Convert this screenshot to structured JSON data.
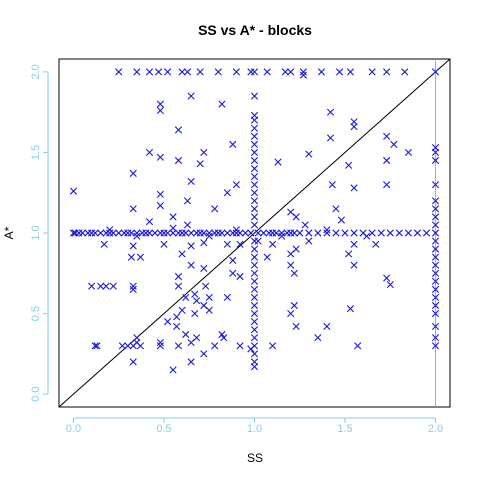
{
  "chart_data": {
    "type": "scatter",
    "title": "SS vs A* - blocks",
    "xlabel": "SS",
    "ylabel": "A*",
    "xlim": [
      -0.08,
      2.08
    ],
    "ylim": [
      -0.08,
      2.08
    ],
    "x_ticks": [
      "0.0",
      "0.5",
      "1.0",
      "1.5",
      "2.0"
    ],
    "y_ticks": [
      "0.0",
      "0.5",
      "1.0",
      "1.5",
      "2.0"
    ],
    "tick_values": [
      0,
      0.5,
      1,
      1.5,
      2
    ],
    "marker": "x",
    "colors": {
      "points": "#1a1adb",
      "ticks": "#87ceeb",
      "axis": "#87ceeb",
      "reference_line": "#000000",
      "vertical_ref": "#aaaaaa"
    },
    "reference_line": {
      "intercept": 0,
      "slope": 1
    },
    "vertical_reference_x": 2,
    "points": [
      [
        0.0,
        1.0
      ],
      [
        0.0,
        1.26
      ],
      [
        0.01,
        1.0
      ],
      [
        0.03,
        1.0
      ],
      [
        0.05,
        1.0
      ],
      [
        0.08,
        1.0
      ],
      [
        0.1,
        1.0
      ],
      [
        0.12,
        1.0
      ],
      [
        0.15,
        1.0
      ],
      [
        0.18,
        1.0
      ],
      [
        0.2,
        1.0
      ],
      [
        0.22,
        1.0
      ],
      [
        0.25,
        1.0
      ],
      [
        0.28,
        1.0
      ],
      [
        0.3,
        1.0
      ],
      [
        0.32,
        1.0
      ],
      [
        0.35,
        1.0
      ],
      [
        0.38,
        1.0
      ],
      [
        0.4,
        1.0
      ],
      [
        0.42,
        1.0
      ],
      [
        0.45,
        1.0
      ],
      [
        0.48,
        1.0
      ],
      [
        0.5,
        1.0
      ],
      [
        0.52,
        1.0
      ],
      [
        0.55,
        1.0
      ],
      [
        0.58,
        1.0
      ],
      [
        0.6,
        1.0
      ],
      [
        0.62,
        1.0
      ],
      [
        0.65,
        1.0
      ],
      [
        0.68,
        1.0
      ],
      [
        0.7,
        1.0
      ],
      [
        0.72,
        1.0
      ],
      [
        0.75,
        1.0
      ],
      [
        0.78,
        1.0
      ],
      [
        0.8,
        1.0
      ],
      [
        0.82,
        1.0
      ],
      [
        0.85,
        1.0
      ],
      [
        0.88,
        1.0
      ],
      [
        0.9,
        1.0
      ],
      [
        0.92,
        1.0
      ],
      [
        0.95,
        1.0
      ],
      [
        0.98,
        1.0
      ],
      [
        1.02,
        1.0
      ],
      [
        1.05,
        1.0
      ],
      [
        1.08,
        1.0
      ],
      [
        1.1,
        1.0
      ],
      [
        1.12,
        1.0
      ],
      [
        1.15,
        1.0
      ],
      [
        1.18,
        1.0
      ],
      [
        1.2,
        1.0
      ],
      [
        1.22,
        1.0
      ],
      [
        1.25,
        1.0
      ],
      [
        1.3,
        1.0
      ],
      [
        1.35,
        1.0
      ],
      [
        1.4,
        1.0
      ],
      [
        1.45,
        1.0
      ],
      [
        1.5,
        1.0
      ],
      [
        1.55,
        1.0
      ],
      [
        1.6,
        1.0
      ],
      [
        1.65,
        1.0
      ],
      [
        1.7,
        1.0
      ],
      [
        1.75,
        1.0
      ],
      [
        1.8,
        1.0
      ],
      [
        1.85,
        1.0
      ],
      [
        1.9,
        1.0
      ],
      [
        1.95,
        1.0
      ],
      [
        2.0,
        1.0
      ],
      [
        0.2,
        1.02
      ],
      [
        0.35,
        0.98
      ],
      [
        0.55,
        1.03
      ],
      [
        0.75,
        0.98
      ],
      [
        0.9,
        1.02
      ],
      [
        1.15,
        0.98
      ],
      [
        1.4,
        1.02
      ],
      [
        1.62,
        0.98
      ],
      [
        1.0,
        0.17
      ],
      [
        1.0,
        0.2
      ],
      [
        1.0,
        0.25
      ],
      [
        1.0,
        0.3
      ],
      [
        1.0,
        0.35
      ],
      [
        1.0,
        0.4
      ],
      [
        1.0,
        0.45
      ],
      [
        1.0,
        0.5
      ],
      [
        1.0,
        0.55
      ],
      [
        1.0,
        0.6
      ],
      [
        1.0,
        0.65
      ],
      [
        1.0,
        0.7
      ],
      [
        1.0,
        0.75
      ],
      [
        1.0,
        0.8
      ],
      [
        1.0,
        0.85
      ],
      [
        1.0,
        0.9
      ],
      [
        1.0,
        0.95
      ],
      [
        1.0,
        1.05
      ],
      [
        1.0,
        1.1
      ],
      [
        1.0,
        1.15
      ],
      [
        1.0,
        1.2
      ],
      [
        1.0,
        1.25
      ],
      [
        1.0,
        1.3
      ],
      [
        1.0,
        1.35
      ],
      [
        1.0,
        1.4
      ],
      [
        1.0,
        1.45
      ],
      [
        1.0,
        1.5
      ],
      [
        1.0,
        1.55
      ],
      [
        1.0,
        1.6
      ],
      [
        1.0,
        1.65
      ],
      [
        1.0,
        1.7
      ],
      [
        1.0,
        1.73
      ],
      [
        1.0,
        1.85
      ],
      [
        1.0,
        2.0
      ],
      [
        2.0,
        0.3
      ],
      [
        2.0,
        0.35
      ],
      [
        2.0,
        0.42
      ],
      [
        2.0,
        0.5
      ],
      [
        2.0,
        0.55
      ],
      [
        2.0,
        0.6
      ],
      [
        2.0,
        0.65
      ],
      [
        2.0,
        0.7
      ],
      [
        2.0,
        0.75
      ],
      [
        2.0,
        0.8
      ],
      [
        2.0,
        0.85
      ],
      [
        2.0,
        0.9
      ],
      [
        2.0,
        0.95
      ],
      [
        2.0,
        1.05
      ],
      [
        2.0,
        1.1
      ],
      [
        2.0,
        1.15
      ],
      [
        2.0,
        1.2
      ],
      [
        2.0,
        1.3
      ],
      [
        2.0,
        1.45
      ],
      [
        2.0,
        1.5
      ],
      [
        2.0,
        1.53
      ],
      [
        2.0,
        2.0
      ],
      [
        0.25,
        2.0
      ],
      [
        0.35,
        2.0
      ],
      [
        0.42,
        2.0
      ],
      [
        0.47,
        2.0
      ],
      [
        0.52,
        2.0
      ],
      [
        0.6,
        2.0
      ],
      [
        0.63,
        2.0
      ],
      [
        0.7,
        2.0
      ],
      [
        0.8,
        2.0
      ],
      [
        0.9,
        2.0
      ],
      [
        0.98,
        2.0
      ],
      [
        1.07,
        2.0
      ],
      [
        1.17,
        2.0
      ],
      [
        1.2,
        2.0
      ],
      [
        1.27,
        2.0
      ],
      [
        1.37,
        2.0
      ],
      [
        1.47,
        2.0
      ],
      [
        1.53,
        2.0
      ],
      [
        1.65,
        2.0
      ],
      [
        1.73,
        2.0
      ],
      [
        1.83,
        2.0
      ],
      [
        0.48,
        1.8
      ],
      [
        0.48,
        1.76
      ],
      [
        0.65,
        1.85
      ],
      [
        0.82,
        1.8
      ],
      [
        0.58,
        1.64
      ],
      [
        1.27,
        1.98
      ],
      [
        1.42,
        1.75
      ],
      [
        0.88,
        1.55
      ],
      [
        1.55,
        1.69
      ],
      [
        1.55,
        1.66
      ],
      [
        1.42,
        1.59
      ],
      [
        1.73,
        1.6
      ],
      [
        1.77,
        1.55
      ],
      [
        0.42,
        1.5
      ],
      [
        0.48,
        1.47
      ],
      [
        0.72,
        1.5
      ],
      [
        0.7,
        1.43
      ],
      [
        0.58,
        1.45
      ],
      [
        1.13,
        1.44
      ],
      [
        1.3,
        1.49
      ],
      [
        1.52,
        1.42
      ],
      [
        1.73,
        1.45
      ],
      [
        1.85,
        1.5
      ],
      [
        0.33,
        1.37
      ],
      [
        0.65,
        1.32
      ],
      [
        0.85,
        1.25
      ],
      [
        0.9,
        1.3
      ],
      [
        1.43,
        1.3
      ],
      [
        1.55,
        1.28
      ],
      [
        1.73,
        1.3
      ],
      [
        0.48,
        1.24
      ],
      [
        0.63,
        1.2
      ],
      [
        0.33,
        1.15
      ],
      [
        0.48,
        1.17
      ],
      [
        0.78,
        1.15
      ],
      [
        1.2,
        1.13
      ],
      [
        1.23,
        1.1
      ],
      [
        1.45,
        1.15
      ],
      [
        1.48,
        1.08
      ],
      [
        1.28,
        1.05
      ],
      [
        0.42,
        1.07
      ],
      [
        0.55,
        1.1
      ],
      [
        0.63,
        1.05
      ],
      [
        0.17,
        0.93
      ],
      [
        0.33,
        0.92
      ],
      [
        0.5,
        0.93
      ],
      [
        0.65,
        0.92
      ],
      [
        0.72,
        0.94
      ],
      [
        0.85,
        0.93
      ],
      [
        0.92,
        0.93
      ],
      [
        1.1,
        0.93
      ],
      [
        1.23,
        0.9
      ],
      [
        1.55,
        0.93
      ],
      [
        1.67,
        0.93
      ],
      [
        1.3,
        0.95
      ],
      [
        1.02,
        0.95
      ],
      [
        0.32,
        0.85
      ],
      [
        0.37,
        0.85
      ],
      [
        0.6,
        0.87
      ],
      [
        0.65,
        0.8
      ],
      [
        1.07,
        0.85
      ],
      [
        1.2,
        0.87
      ],
      [
        1.2,
        0.8
      ],
      [
        1.52,
        0.87
      ],
      [
        1.55,
        0.8
      ],
      [
        0.72,
        0.78
      ],
      [
        0.88,
        0.83
      ],
      [
        0.92,
        0.73
      ],
      [
        1.22,
        0.75
      ],
      [
        1.73,
        0.72
      ],
      [
        1.75,
        0.68
      ],
      [
        0.58,
        0.73
      ],
      [
        0.88,
        0.75
      ],
      [
        0.1,
        0.67
      ],
      [
        0.15,
        0.67
      ],
      [
        0.18,
        0.67
      ],
      [
        0.22,
        0.67
      ],
      [
        0.33,
        0.65
      ],
      [
        0.33,
        0.67
      ],
      [
        0.58,
        0.67
      ],
      [
        0.73,
        0.67
      ],
      [
        0.67,
        0.62
      ],
      [
        0.68,
        0.58
      ],
      [
        0.75,
        0.6
      ],
      [
        0.85,
        0.6
      ],
      [
        0.72,
        0.55
      ],
      [
        0.6,
        0.52
      ],
      [
        0.57,
        0.48
      ],
      [
        0.52,
        0.45
      ],
      [
        0.57,
        0.42
      ],
      [
        0.67,
        0.5
      ],
      [
        0.75,
        0.52
      ],
      [
        1.22,
        0.55
      ],
      [
        1.2,
        0.5
      ],
      [
        1.23,
        0.42
      ],
      [
        1.53,
        0.53
      ],
      [
        0.12,
        0.3
      ],
      [
        0.13,
        0.3
      ],
      [
        0.27,
        0.3
      ],
      [
        0.3,
        0.3
      ],
      [
        0.33,
        0.3
      ],
      [
        0.35,
        0.35
      ],
      [
        0.35,
        0.32
      ],
      [
        0.37,
        0.3
      ],
      [
        0.33,
        0.2
      ],
      [
        0.48,
        0.3
      ],
      [
        0.48,
        0.32
      ],
      [
        0.58,
        0.3
      ],
      [
        0.55,
        0.15
      ],
      [
        0.65,
        0.32
      ],
      [
        0.65,
        0.2
      ],
      [
        0.68,
        0.35
      ],
      [
        0.72,
        0.25
      ],
      [
        0.78,
        0.3
      ],
      [
        0.83,
        0.35
      ],
      [
        0.82,
        0.37
      ],
      [
        0.92,
        0.3
      ],
      [
        0.98,
        0.28
      ],
      [
        1.1,
        0.3
      ],
      [
        1.57,
        0.3
      ],
      [
        0.62,
        0.37
      ],
      [
        0.62,
        0.6
      ],
      [
        1.35,
        0.35
      ],
      [
        1.4,
        0.42
      ]
    ]
  }
}
